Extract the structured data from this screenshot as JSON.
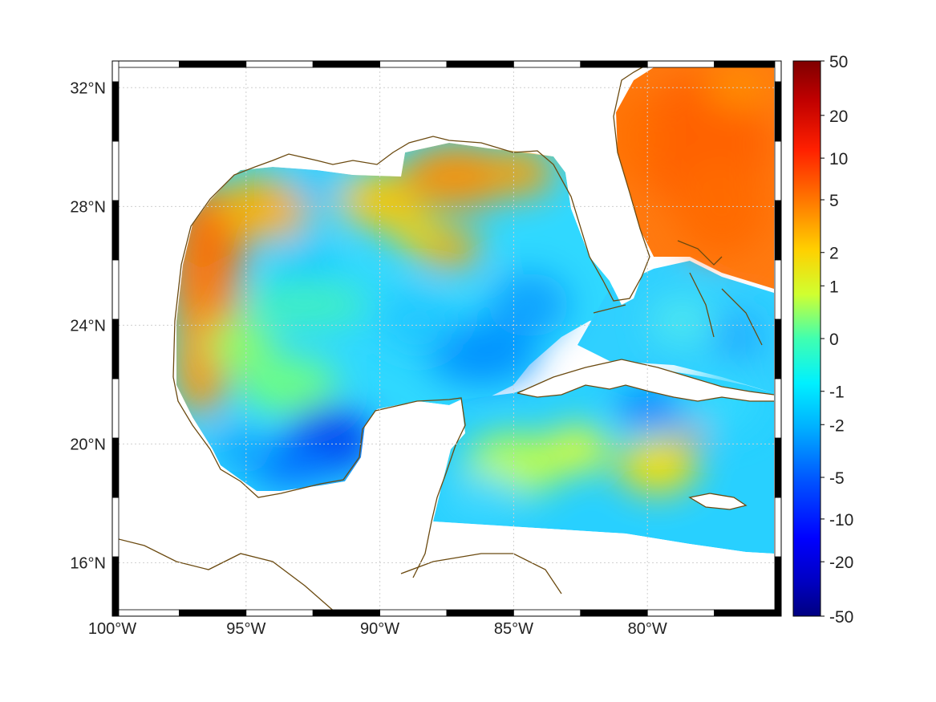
{
  "map": {
    "lon_range": [
      -100,
      -75
    ],
    "lat_range": [
      14.2,
      32.9
    ],
    "lon_ticks": [
      {
        "lon": -100,
        "label": "100°W"
      },
      {
        "lon": -95,
        "label": "95°W"
      },
      {
        "lon": -90,
        "label": "90°W"
      },
      {
        "lon": -85,
        "label": "85°W"
      },
      {
        "lon": -80,
        "label": "80°W"
      }
    ],
    "lat_ticks": [
      {
        "lat": 32,
        "label": "32°N"
      },
      {
        "lat": 28,
        "label": "28°N"
      },
      {
        "lat": 24,
        "label": "24°N"
      },
      {
        "lat": 20,
        "label": "20°N"
      },
      {
        "lat": 16,
        "label": "16°N"
      }
    ],
    "grid": true,
    "frame_style": "alternating black-white border",
    "coastline_color": "#6b4a10",
    "land_color": "#ffffff",
    "regions": [
      {
        "name": "northwest-gulf",
        "value": 5
      },
      {
        "name": "atlantic-east-of-florida",
        "value": 7
      },
      {
        "name": "central-gulf",
        "value": -2
      },
      {
        "name": "bay-of-campeche",
        "value": -6
      },
      {
        "name": "caribbean",
        "value": 0
      }
    ]
  },
  "colorbar": {
    "labels": [
      "50",
      "20",
      "10",
      "5",
      "2",
      "1",
      "0",
      "-1",
      "-2",
      "-5",
      "-10",
      "-20",
      "-50"
    ],
    "colors": [
      "#7f0000",
      "#d40000",
      "#ff3000",
      "#ff8a00",
      "#ffd800",
      "#c8ff30",
      "#40ffb0",
      "#00f0ff",
      "#00b8ff",
      "#0060ff",
      "#0010ff",
      "#0000c8",
      "#000080"
    ]
  }
}
